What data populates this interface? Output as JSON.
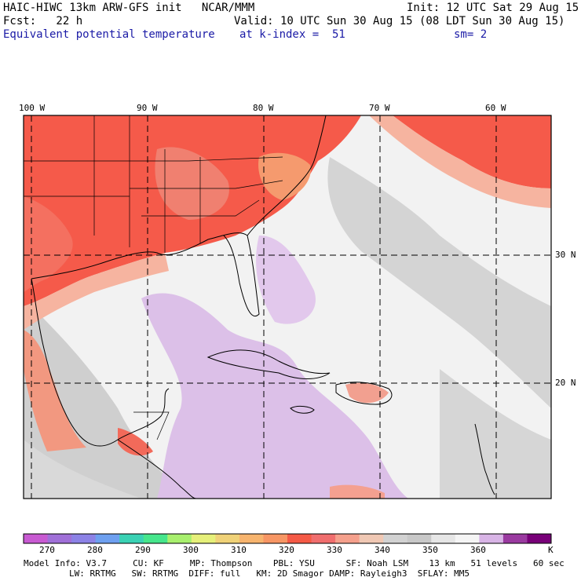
{
  "header": {
    "title": "HAIC-HIWC 13km ARW-GFS init   NCAR/MMM",
    "init": "Init: 12 UTC Sat 29 Aug 15",
    "fcst": "Fcst:   22 h",
    "valid": "Valid: 10 UTC Sun 30 Aug 15 (08 LDT Sun 30 Aug 15)",
    "field": "Equivalent potential temperature",
    "level": "at k-index =  51",
    "smoothing": "sm= 2"
  },
  "map": {
    "lon_labels": [
      "100 W",
      "90 W",
      "80 W",
      "70 W",
      "60 W"
    ],
    "lat_labels": [
      "30 N",
      "20 N"
    ]
  },
  "colorbar": {
    "labels": [
      "270",
      "280",
      "290",
      "300",
      "310",
      "320",
      "330",
      "340",
      "350",
      "360"
    ],
    "unit": "K",
    "colors": [
      "#c85ad2",
      "#a070d8",
      "#8c82e6",
      "#6ea0f0",
      "#3ad2b4",
      "#46e68c",
      "#a8f06e",
      "#e6f07a",
      "#f0d278",
      "#f7b46e",
      "#f79664",
      "#f55a46",
      "#f06e6e",
      "#f5a08c",
      "#f0c8b4",
      "#d2d2d2",
      "#c8c8c8",
      "#e6e6e6",
      "#f5f5f5",
      "#d8b4e6",
      "#9a3aa0",
      "#780078"
    ]
  },
  "footer": {
    "line1": "Model Info: V3.7     CU: KF     MP: Thompson    PBL: YSU      SF: Noah LSM    13 km   51 levels   60 sec",
    "line2": "LW: RRTMG   SW: RRTMG  DIFF: full   KM: 2D Smagor DAMP: Rayleigh3  SFLAY: MM5"
  }
}
